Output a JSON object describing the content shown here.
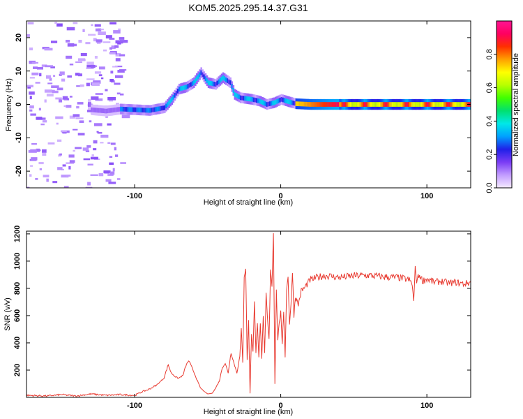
{
  "title": "KOM5.2025.295.14.37.G31",
  "chart_data": [
    {
      "type": "heatmap",
      "xlabel": "Height of straight line (km)",
      "ylabel": "Frequency (Hz)",
      "xlim": [
        -174,
        130
      ],
      "ylim": [
        -25,
        25
      ],
      "xticks": [
        -100,
        0,
        100
      ],
      "yticks": [
        20,
        10,
        0,
        -10,
        -20
      ],
      "colorbar": {
        "label": "Normalized spectral amplitude",
        "range": [
          0,
          1
        ],
        "ticks": [
          0.0,
          0.2,
          0.4,
          0.6,
          0.8
        ],
        "tick_labels": [
          "0.0",
          "0.2",
          "0.4",
          "0.6",
          "0.8"
        ],
        "colors": [
          "#f5eaff",
          "#c29cff",
          "#7a3cf5",
          "#2020e8",
          "#00a0ff",
          "#00e8e8",
          "#00e070",
          "#40ff00",
          "#b8ff00",
          "#ffff00",
          "#ffa000",
          "#ff3000",
          "#ff0060",
          "#ff1493"
        ]
      },
      "ridge": [
        {
          "x": -130,
          "y": -1.6
        },
        {
          "x": -120,
          "y": -2.0
        },
        {
          "x": -110,
          "y": -1.4
        },
        {
          "x": -100,
          "y": -1.6
        },
        {
          "x": -90,
          "y": -1.8
        },
        {
          "x": -80,
          "y": -1.0
        },
        {
          "x": -75,
          "y": 1.5
        },
        {
          "x": -70,
          "y": 4.6
        },
        {
          "x": -65,
          "y": 5.2
        },
        {
          "x": -60,
          "y": 6.5
        },
        {
          "x": -55,
          "y": 9.5
        },
        {
          "x": -50,
          "y": 6.5
        },
        {
          "x": -45,
          "y": 6.0
        },
        {
          "x": -40,
          "y": 8.0
        },
        {
          "x": -35,
          "y": 6.5
        },
        {
          "x": -32,
          "y": 3.0
        },
        {
          "x": -28,
          "y": 2.0
        },
        {
          "x": -20,
          "y": 1.5
        },
        {
          "x": -15,
          "y": 1.0
        },
        {
          "x": -10,
          "y": 0.0
        },
        {
          "x": -5,
          "y": 0.5
        },
        {
          "x": 0,
          "y": 1.5
        },
        {
          "x": 5,
          "y": 0.8
        },
        {
          "x": 10,
          "y": 0.2
        },
        {
          "x": 20,
          "y": 0.0
        },
        {
          "x": 40,
          "y": 0.0
        },
        {
          "x": 60,
          "y": 0.0
        },
        {
          "x": 80,
          "y": 0.0
        },
        {
          "x": 100,
          "y": 0.0
        },
        {
          "x": 120,
          "y": 0.0
        },
        {
          "x": 130,
          "y": 0.0
        }
      ]
    },
    {
      "type": "line",
      "xlabel": "Height of straight line (km)",
      "ylabel": "SNR (v/v)",
      "xlim": [
        -174,
        130
      ],
      "ylim": [
        0,
        1220
      ],
      "xticks": [
        -100,
        0,
        100
      ],
      "yticks": [
        200,
        400,
        600,
        800,
        1000,
        1200
      ],
      "color": "#e83a30",
      "series": [
        {
          "name": "SNR",
          "x": [
            -174,
            -160,
            -150,
            -140,
            -130,
            -120,
            -110,
            -100,
            -95,
            -90,
            -85,
            -80,
            -77,
            -75,
            -72,
            -70,
            -67,
            -65,
            -63,
            -60,
            -57,
            -55,
            -52,
            -50,
            -47,
            -45,
            -42,
            -40,
            -38,
            -36,
            -34,
            -32,
            -30,
            -28,
            -27,
            -26,
            -25,
            -24,
            -23,
            -22,
            -21,
            -20,
            -19,
            -18,
            -17,
            -16,
            -15,
            -14,
            -13,
            -12,
            -11,
            -10,
            -9,
            -8,
            -7,
            -6,
            -5,
            -4,
            -3,
            -2,
            -1,
            0,
            1,
            2,
            3,
            4,
            5,
            6,
            7,
            8,
            9,
            10,
            12,
            14,
            16,
            18,
            20,
            25,
            30,
            35,
            40,
            50,
            60,
            70,
            80,
            85,
            88,
            90,
            91,
            92,
            93,
            95,
            97,
            100,
            105,
            110,
            115,
            120,
            125,
            130
          ],
          "y": [
            15,
            10,
            20,
            10,
            25,
            15,
            20,
            15,
            40,
            60,
            90,
            140,
            240,
            180,
            150,
            140,
            160,
            230,
            270,
            200,
            120,
            70,
            40,
            25,
            30,
            60,
            120,
            220,
            250,
            180,
            330,
            250,
            180,
            300,
            500,
            260,
            900,
            950,
            280,
            560,
            30,
            470,
            340,
            700,
            320,
            560,
            300,
            530,
            290,
            580,
            320,
            760,
            560,
            420,
            950,
            820,
            1220,
            100,
            780,
            420,
            560,
            620,
            380,
            640,
            300,
            780,
            900,
            540,
            670,
            940,
            600,
            740,
            680,
            780,
            800,
            830,
            860,
            880,
            895,
            888,
            880,
            892,
            895,
            885,
            880,
            870,
            860,
            830,
            700,
            940,
            860,
            900,
            855,
            870,
            845,
            852,
            838,
            845,
            833,
            843
          ]
        }
      ]
    }
  ]
}
